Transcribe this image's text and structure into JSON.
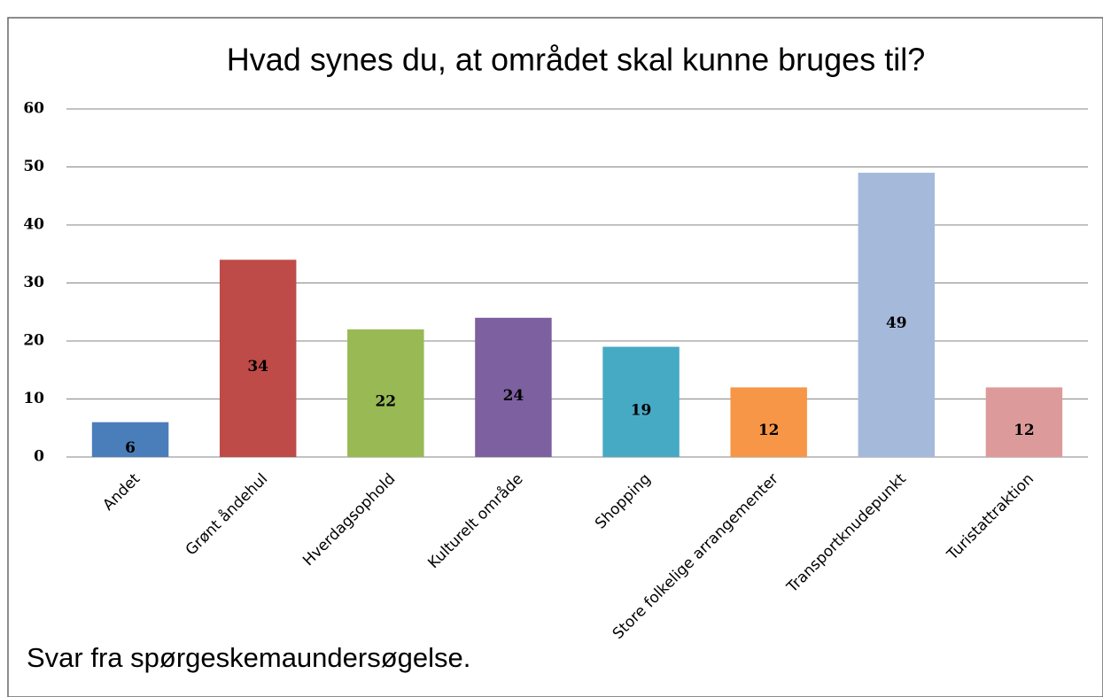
{
  "chart_data": {
    "type": "bar",
    "title": "Hvad synes du, at området skal kunne bruges til?",
    "categories": [
      "Andet",
      "Grønt åndehul",
      "Hverdagsophold",
      "Kulturelt område",
      "Shopping",
      "Store folkelige arrangementer",
      "Transportknudepunkt",
      "Turistattraktion"
    ],
    "values": [
      6,
      34,
      22,
      24,
      19,
      12,
      49,
      12
    ],
    "colors": [
      "#4a7ebb",
      "#be4b48",
      "#98b954",
      "#7d60a0",
      "#46aac5",
      "#f79646",
      "#a5b9db",
      "#dc9b9a"
    ],
    "ylim": [
      0,
      60
    ],
    "yticks": [
      0,
      10,
      20,
      30,
      40,
      50,
      60
    ],
    "grid": true
  },
  "caption": "Svar fra spørgeskemaundersøgelse."
}
